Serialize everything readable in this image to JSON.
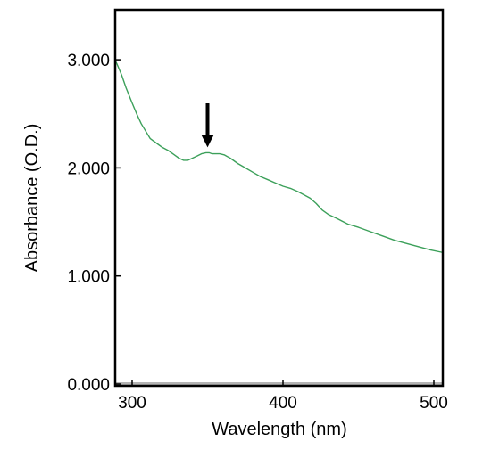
{
  "chart_data": {
    "type": "line",
    "xlabel": "Wavelength (nm)",
    "ylabel": "Absorbance (O.D.)",
    "xlim": [
      288,
      510
    ],
    "ylim": [
      0.0,
      3.4
    ],
    "xticks": [
      300,
      400,
      500
    ],
    "xtick_labels": [
      "300",
      "400",
      "500"
    ],
    "yticks": [
      0.0,
      1.0,
      2.0,
      3.0
    ],
    "ytick_labels": [
      "0.000",
      "1.000",
      "2.000",
      "3.000"
    ],
    "grid": false,
    "legend": "none",
    "series": [
      {
        "color": "#3ca05a",
        "x": [
          288,
          290,
          293,
          296,
          300,
          303,
          306,
          309,
          312,
          316,
          320,
          324,
          328,
          331,
          334,
          337,
          340,
          343,
          346,
          349,
          351,
          353,
          355,
          358,
          361,
          365,
          370,
          375,
          380,
          385,
          390,
          395,
          400,
          405,
          410,
          414,
          418,
          422,
          426,
          430,
          436,
          443,
          450,
          458,
          466,
          474,
          482,
          490,
          498,
          505,
          510
        ],
        "y": [
          3.02,
          2.96,
          2.86,
          2.74,
          2.6,
          2.5,
          2.41,
          2.34,
          2.27,
          2.23,
          2.19,
          2.16,
          2.12,
          2.09,
          2.07,
          2.07,
          2.09,
          2.11,
          2.13,
          2.14,
          2.14,
          2.13,
          2.13,
          2.13,
          2.12,
          2.09,
          2.04,
          2.0,
          1.96,
          1.92,
          1.89,
          1.86,
          1.83,
          1.81,
          1.78,
          1.75,
          1.72,
          1.67,
          1.61,
          1.57,
          1.53,
          1.48,
          1.45,
          1.41,
          1.37,
          1.33,
          1.3,
          1.27,
          1.24,
          1.22,
          1.2
        ]
      }
    ],
    "annotations": [
      {
        "type": "arrow",
        "x": 350,
        "y": 2.14,
        "direction": "down",
        "color": "#000000"
      }
    ]
  }
}
